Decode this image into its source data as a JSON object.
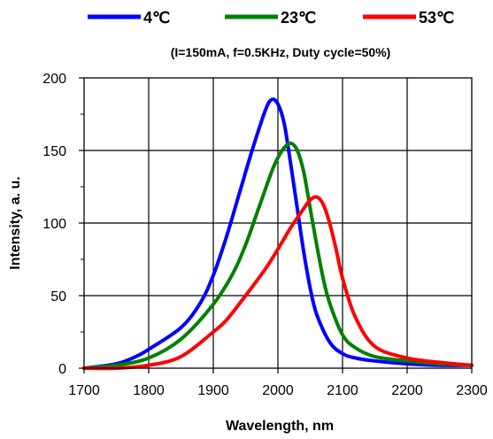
{
  "chart_data": {
    "type": "line",
    "subtitle": "(I=150mA, f=0.5KHz, Duty cycle=50%)",
    "xlabel": "Wavelength,  nm",
    "ylabel": "Intensity, a. u.",
    "xlim": [
      1700,
      2300
    ],
    "ylim": [
      0,
      200
    ],
    "x_ticks": [
      1700,
      1800,
      1900,
      2000,
      2100,
      2200,
      2300
    ],
    "y_ticks": [
      0,
      50,
      100,
      150,
      200
    ],
    "grid": true,
    "legend_position": "top",
    "series": [
      {
        "name": "4℃",
        "color": "#0000ff",
        "x": [
          1700,
          1750,
          1780,
          1800,
          1850,
          1880,
          1900,
          1920,
          1940,
          1960,
          1980,
          1990,
          2000,
          2010,
          2020,
          2030,
          2040,
          2050,
          2060,
          2080,
          2100,
          2120,
          2150,
          2200,
          2250,
          2300
        ],
        "y": [
          0,
          3,
          8,
          13,
          28,
          45,
          64,
          90,
          120,
          150,
          177,
          185,
          182,
          168,
          140,
          110,
          80,
          55,
          37,
          18,
          10,
          7,
          5,
          3,
          2,
          2
        ]
      },
      {
        "name": "23℃",
        "color": "#008000",
        "x": [
          1700,
          1750,
          1800,
          1850,
          1900,
          1930,
          1950,
          1970,
          1990,
          2000,
          2010,
          2020,
          2030,
          2040,
          2050,
          2060,
          2070,
          2080,
          2100,
          2120,
          2150,
          2200,
          2250,
          2300
        ],
        "y": [
          0,
          2,
          7,
          20,
          44,
          65,
          85,
          110,
          135,
          145,
          152,
          155,
          150,
          135,
          110,
          85,
          62,
          45,
          23,
          14,
          8,
          5,
          3,
          2
        ]
      },
      {
        "name": "53℃",
        "color": "#ff0000",
        "x": [
          1700,
          1750,
          1800,
          1850,
          1900,
          1920,
          1950,
          1980,
          2000,
          2020,
          2040,
          2050,
          2060,
          2070,
          2080,
          2090,
          2100,
          2120,
          2150,
          2200,
          2250,
          2300
        ],
        "y": [
          0,
          0,
          2,
          8,
          25,
          33,
          50,
          68,
          82,
          97,
          110,
          116,
          118,
          113,
          100,
          82,
          62,
          35,
          15,
          7,
          4,
          2
        ]
      }
    ]
  }
}
